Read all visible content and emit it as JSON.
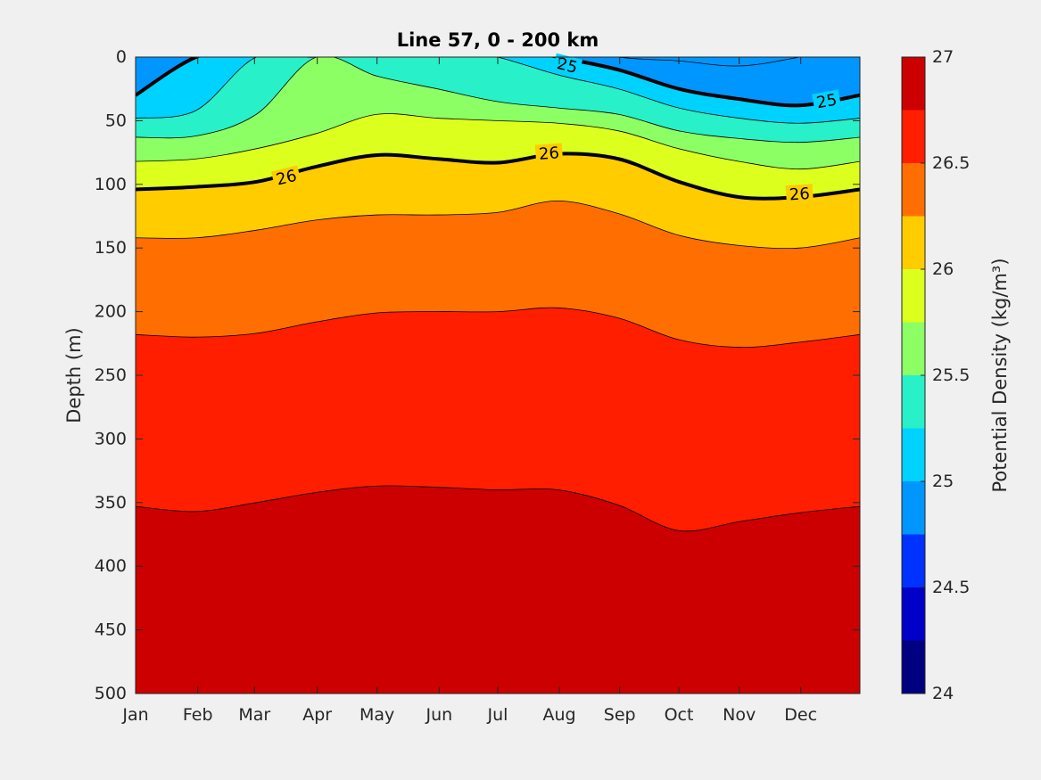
{
  "chart_data": {
    "type": "contour",
    "title": "Line 57, 0 - 200 km",
    "xlabel": "",
    "ylabel": "Depth (m)",
    "colorbar_label": "Potential Density (kg/m³)",
    "x_ticks": [
      "Jan",
      "Feb",
      "Mar",
      "Apr",
      "May",
      "Jun",
      "Jul",
      "Aug",
      "Sep",
      "Oct",
      "Nov",
      "Dec"
    ],
    "y_ticks": [
      "0",
      "50",
      "100",
      "150",
      "200",
      "250",
      "300",
      "350",
      "400",
      "450",
      "500"
    ],
    "y_range": [
      0,
      500
    ],
    "y_reversed": true,
    "colorbar_ticks": [
      "24",
      "24.5",
      "25",
      "25.5",
      "26",
      "26.5",
      "27"
    ],
    "colorbar_range": [
      24,
      27
    ],
    "levels": [
      24,
      24.25,
      24.5,
      24.75,
      25,
      25.25,
      25.5,
      25.75,
      26,
      26.25,
      26.5,
      26.75,
      27
    ],
    "colormap": [
      "#000080",
      "#0000c8",
      "#0032ff",
      "#0096ff",
      "#00d2ff",
      "#28f0c8",
      "#8cff64",
      "#dcff1e",
      "#ffcc00",
      "#ff6e00",
      "#ff1e00",
      "#cc0000"
    ],
    "months": [
      0,
      1,
      2,
      3,
      4,
      5,
      6,
      7,
      8,
      9,
      10,
      11,
      12
    ],
    "isopycnal_depths": [
      {
        "level": 24.75,
        "depths": [
          null,
          null,
          null,
          null,
          null,
          null,
          null,
          null,
          0,
          3,
          7,
          0,
          null
        ]
      },
      {
        "level": 25.0,
        "depths": [
          30,
          0,
          null,
          null,
          null,
          null,
          null,
          0,
          10,
          25,
          33,
          38,
          30
        ]
      },
      {
        "level": 25.25,
        "depths": [
          48,
          42,
          0,
          0,
          null,
          null,
          0,
          14,
          25,
          40,
          48,
          52,
          48
        ]
      },
      {
        "level": 25.5,
        "depths": [
          63,
          62,
          45,
          0,
          15,
          25,
          35,
          40,
          45,
          58,
          64,
          67,
          63
        ]
      },
      {
        "level": 25.75,
        "depths": [
          82,
          80,
          72,
          60,
          45,
          48,
          50,
          52,
          58,
          72,
          82,
          88,
          82
        ]
      },
      {
        "level": 26.0,
        "depths": [
          104,
          102,
          98,
          86,
          77,
          80,
          83,
          76,
          80,
          98,
          110,
          110,
          104
        ]
      },
      {
        "level": 26.25,
        "depths": [
          142,
          142,
          136,
          128,
          124,
          124,
          122,
          113,
          123,
          140,
          148,
          150,
          142
        ]
      },
      {
        "level": 26.5,
        "depths": [
          218,
          220,
          217,
          208,
          201,
          200,
          200,
          197,
          205,
          222,
          228,
          224,
          218
        ]
      },
      {
        "level": 26.75,
        "depths": [
          353,
          357,
          350,
          342,
          337,
          338,
          340,
          340,
          352,
          372,
          365,
          358,
          353
        ]
      }
    ],
    "contour_labels": [
      {
        "text": "25",
        "month": 7.15,
        "depth": 7,
        "angle": 14
      },
      {
        "text": "25",
        "month": 11.45,
        "depth": 35,
        "angle": -10
      },
      {
        "text": "26",
        "month": 2.5,
        "depth": 95,
        "angle": -14
      },
      {
        "text": "26",
        "month": 6.85,
        "depth": 76,
        "angle": -4
      },
      {
        "text": "26",
        "month": 11.0,
        "depth": 108,
        "angle": -4
      }
    ]
  }
}
